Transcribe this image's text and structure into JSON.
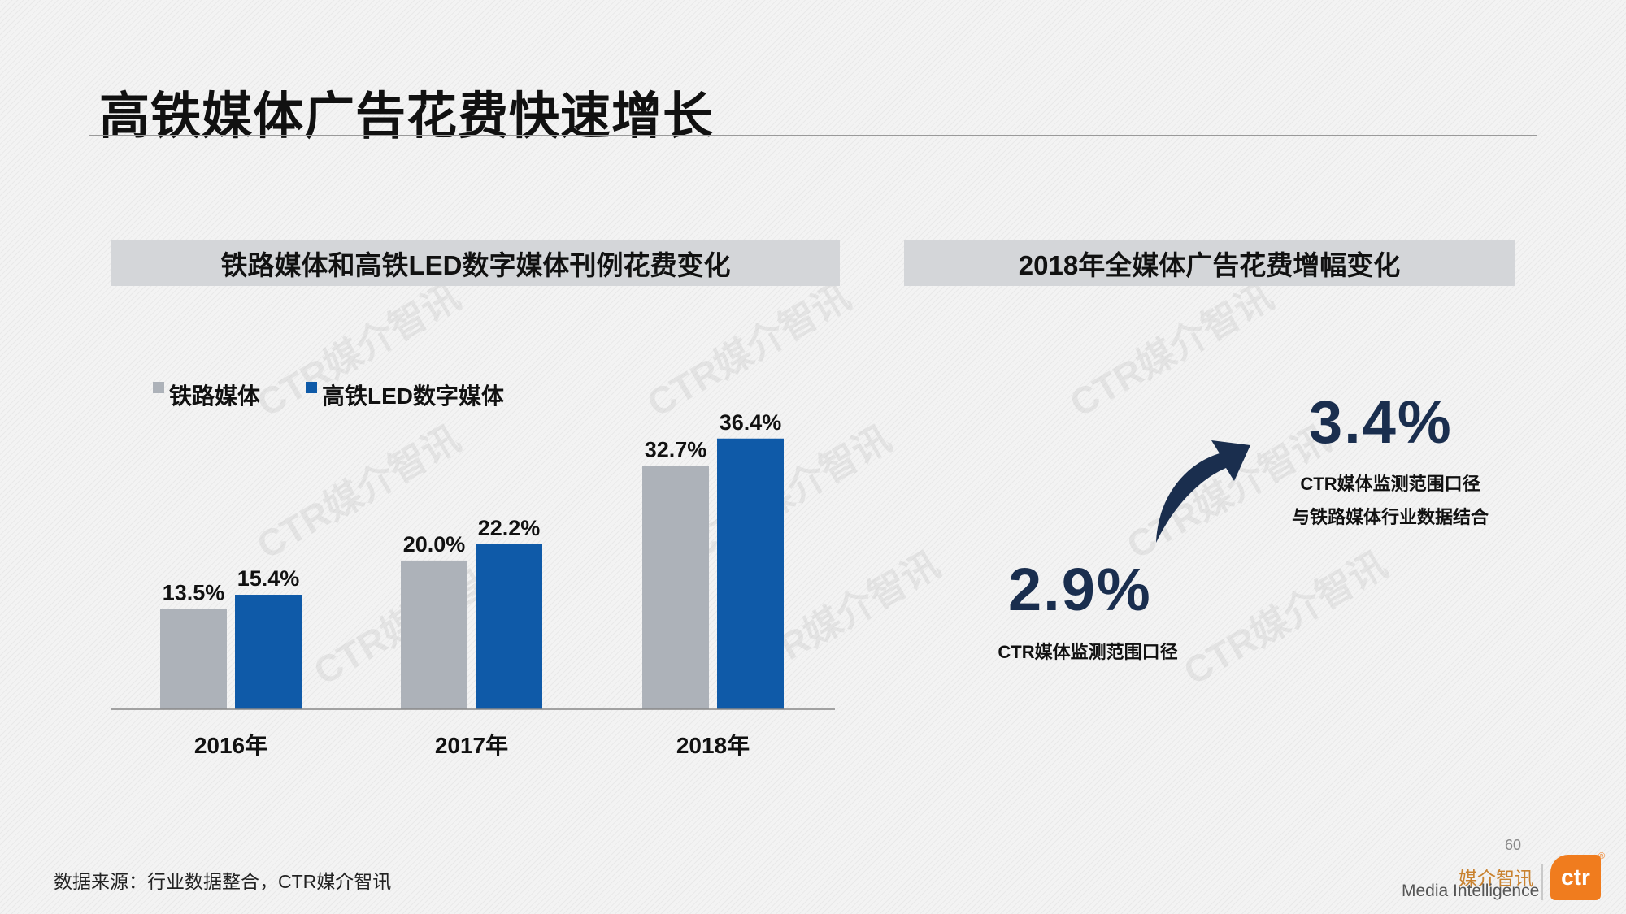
{
  "slide": {
    "title": "高铁媒体广告花费快速增长",
    "left_panel_title": "铁路媒体和高铁LED数字媒体刊例花费变化",
    "right_panel_title": "2018年全媒体广告花费增幅变化",
    "watermark_text": "CTR媒介智讯",
    "source": "数据来源：行业数据整合，CTR媒介智讯",
    "page_number": "60"
  },
  "chart_data": {
    "type": "bar",
    "categories": [
      "2016年",
      "2017年",
      "2018年"
    ],
    "series": [
      {
        "name": "铁路媒体",
        "values": [
          13.5,
          20.0,
          32.7
        ],
        "labels": [
          "13.5%",
          "20.0%",
          "32.7%"
        ],
        "color": "#adb2b9"
      },
      {
        "name": "高铁LED数字媒体",
        "values": [
          15.4,
          22.2,
          36.4
        ],
        "labels": [
          "15.4%",
          "22.2%",
          "36.4%"
        ],
        "color": "#0f5aa8"
      }
    ],
    "ylim": [
      0,
      40
    ],
    "grid": false,
    "legend": "top-left"
  },
  "growth": {
    "low_value": "2.9%",
    "low_caption": "CTR媒体监测范围口径",
    "high_value": "3.4%",
    "high_caption_line1": "CTR媒体监测范围口径",
    "high_caption_line2": "与铁路媒体行业数据结合",
    "arrow_color": "#1a2e4e"
  },
  "brand": {
    "name_cn": "媒介智讯",
    "name_en": "Media Intelligence",
    "logo_text": "ctr",
    "reg_mark": "®",
    "logo_color": "#f07c1e"
  }
}
